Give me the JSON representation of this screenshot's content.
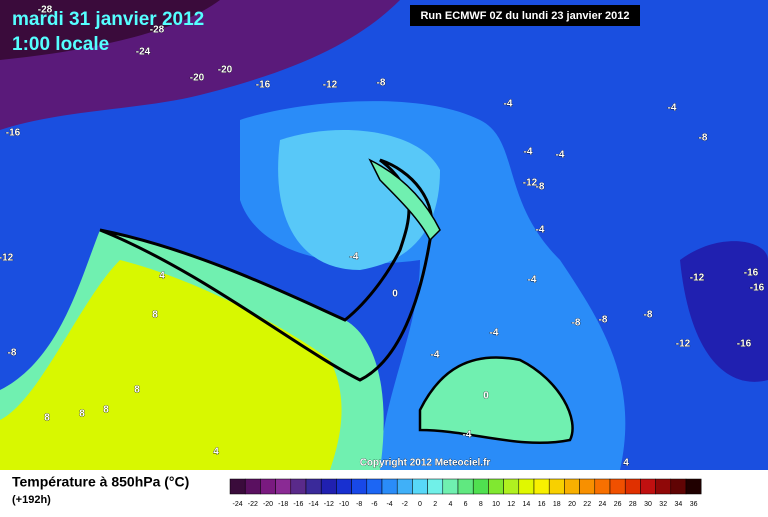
{
  "header": {
    "date": "mardi 31 janvier 2012",
    "time": "1:00 locale",
    "run": "Run ECMWF 0Z du lundi 23 janvier 2012"
  },
  "copyright": "Copyright 2012 Meteociel.fr",
  "legend": {
    "title": "Température à 850hPa (°C)",
    "lead": "(+192h)",
    "ticks": [
      -24,
      -22,
      -20,
      -18,
      -16,
      -14,
      -12,
      -10,
      -8,
      -6,
      -4,
      -2,
      0,
      2,
      4,
      6,
      8,
      10,
      12,
      14,
      16,
      18,
      20,
      22,
      24,
      26,
      28,
      30,
      32,
      34,
      36
    ],
    "colors": [
      "#3a0b3b",
      "#5a1060",
      "#7a1a80",
      "#8a2a94",
      "#5a2a8a",
      "#3a2a9a",
      "#2020b0",
      "#1830d0",
      "#1848e8",
      "#1c66f4",
      "#2a8cf8",
      "#40b0f8",
      "#58d8f8",
      "#70f0e8",
      "#70f0b0",
      "#60e880",
      "#50e050",
      "#80e830",
      "#b0f020",
      "#e0f800",
      "#f8f000",
      "#f8d000",
      "#f8b000",
      "#f89000",
      "#f87000",
      "#f05000",
      "#e03000",
      "#c01010",
      "#900808",
      "#600404",
      "#200000"
    ]
  },
  "contour_labels": [
    -28,
    -28,
    -24,
    -20,
    -20,
    -16,
    -12,
    -8,
    -4,
    -4,
    -16,
    -8,
    -4,
    -4,
    -12,
    -8,
    -4,
    -4,
    -12,
    4,
    -12,
    -16,
    -16,
    0,
    -4,
    8,
    -8,
    -8,
    -8,
    -4,
    -12,
    -16,
    -8,
    -4,
    8,
    8,
    8,
    8,
    0,
    -4,
    4,
    4
  ]
}
